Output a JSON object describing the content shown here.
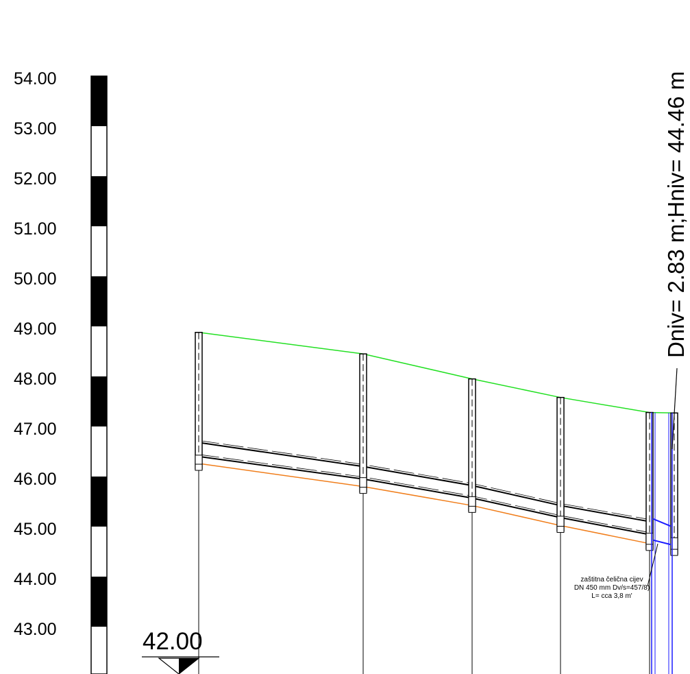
{
  "scale": {
    "labels": [
      "54.00",
      "53.00",
      "52.00",
      "51.00",
      "50.00",
      "49.00",
      "48.00",
      "47.00",
      "46.00",
      "45.00",
      "44.00",
      "43.00"
    ]
  },
  "datum": {
    "label": "42.00"
  },
  "manhole_note": {
    "text": "Dniv= 2.83 m;Hniv= 44.46 m"
  },
  "pipe_note": {
    "lines": [
      "zaštitna čelična cijev",
      "DN 450 mm Dv/s=457/8)",
      "L= cca 3,8 m'"
    ]
  },
  "profile": {
    "colors": {
      "terrain": "#22e022",
      "pipe": "#000000",
      "trench": "#f07d1a",
      "casing": "#1a1aff"
    },
    "stations": [
      {
        "terrain": 48.88,
        "pipe_top": 46.68,
        "pipe_bottom": 46.4,
        "trench": 46.26
      },
      {
        "terrain": 48.45,
        "pipe_top": 46.2,
        "pipe_bottom": 45.95,
        "trench": 45.8
      },
      {
        "terrain": 47.95,
        "pipe_top": 45.82,
        "pipe_bottom": 45.57,
        "trench": 45.42
      },
      {
        "terrain": 47.58,
        "pipe_top": 45.42,
        "pipe_bottom": 45.18,
        "trench": 45.02
      },
      {
        "terrain": 47.28,
        "pipe_top": 45.1,
        "pipe_bottom": 44.84,
        "trench": 44.66
      },
      {
        "terrain": 47.27,
        "pipe_top": 44.98,
        "pipe_bottom": 44.75,
        "trench": 44.56
      }
    ]
  }
}
